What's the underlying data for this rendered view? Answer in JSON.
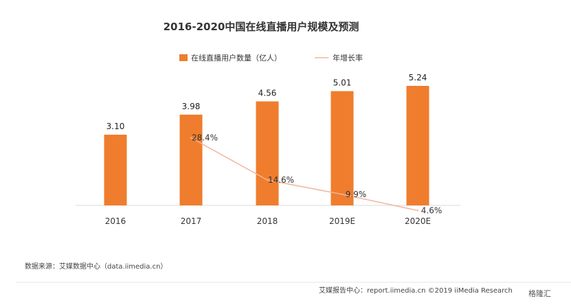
{
  "chart_data": {
    "type": "bar",
    "title": "2016-2020中国在线直播用户规模及预测",
    "categories": [
      "2016",
      "2017",
      "2018",
      "2019E",
      "2020E"
    ],
    "series": [
      {
        "name": "在线直播用户数量（亿人）",
        "type": "bar",
        "values": [
          3.1,
          3.98,
          4.56,
          5.01,
          5.24
        ],
        "value_labels": [
          "3.10",
          "3.98",
          "4.56",
          "5.01",
          "5.24"
        ],
        "color": "#ef7d2d"
      },
      {
        "name": "年增长率",
        "type": "line",
        "values": [
          null,
          28.4,
          14.6,
          9.9,
          4.6
        ],
        "value_labels": [
          "",
          "28.4%",
          "14.6%",
          "9.9%",
          "4.6%"
        ],
        "color": "#f2b59a"
      }
    ],
    "ylim": [
      0,
      6
    ],
    "y2lim": [
      0,
      40
    ],
    "grid": false,
    "legend_position": "top-center"
  },
  "source": "数据来源：艾媒数据中心（data.iimedia.cn）",
  "footer": "艾媒报告中心：report.iimedia.cn  ©2019  iiMedia Research",
  "watermark": "格隆汇",
  "colors": {
    "bar": "#ef7d2d",
    "line": "#f2b59a",
    "axis": "#d9d9d9"
  }
}
